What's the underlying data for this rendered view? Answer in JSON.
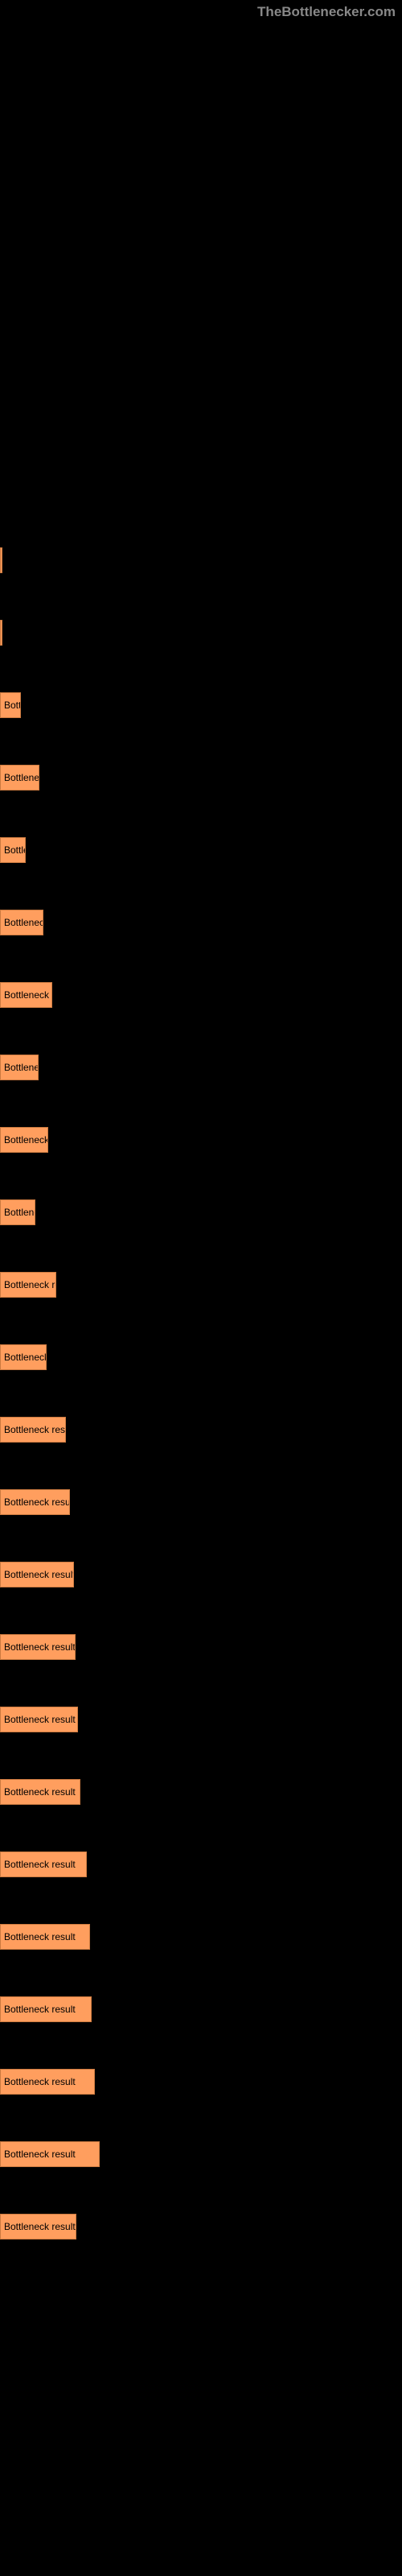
{
  "watermark": "TheBottlenecker.com",
  "chart": {
    "type": "bar-horizontal",
    "background_color": "#000000",
    "bar_color": "#ff9e5e",
    "bar_border_color": "#cc7a40",
    "text_color": "#000000",
    "watermark_color": "#888888",
    "bars": [
      {
        "width": 3,
        "label": ""
      },
      {
        "width": 3,
        "label": ""
      },
      {
        "width": 26,
        "label": "Bottle"
      },
      {
        "width": 49,
        "label": "Bottleneck"
      },
      {
        "width": 32,
        "label": "Bottlen"
      },
      {
        "width": 54,
        "label": "Bottleneck r"
      },
      {
        "width": 65,
        "label": "Bottleneck res"
      },
      {
        "width": 48,
        "label": "Bottleneck"
      },
      {
        "width": 60,
        "label": "Bottleneck re"
      },
      {
        "width": 44,
        "label": "Bottlenec"
      },
      {
        "width": 70,
        "label": "Bottleneck resu"
      },
      {
        "width": 58,
        "label": "Bottleneck r"
      },
      {
        "width": 82,
        "label": "Bottleneck result"
      },
      {
        "width": 87,
        "label": "Bottleneck result"
      },
      {
        "width": 92,
        "label": "Bottleneck result"
      },
      {
        "width": 94,
        "label": "Bottleneck result"
      },
      {
        "width": 97,
        "label": "Bottleneck result"
      },
      {
        "width": 100,
        "label": "Bottleneck result"
      },
      {
        "width": 108,
        "label": "Bottleneck result"
      },
      {
        "width": 112,
        "label": "Bottleneck result"
      },
      {
        "width": 114,
        "label": "Bottleneck result"
      },
      {
        "width": 118,
        "label": "Bottleneck result"
      },
      {
        "width": 124,
        "label": "Bottleneck result"
      },
      {
        "width": 95,
        "label": "Bottleneck result"
      }
    ]
  }
}
